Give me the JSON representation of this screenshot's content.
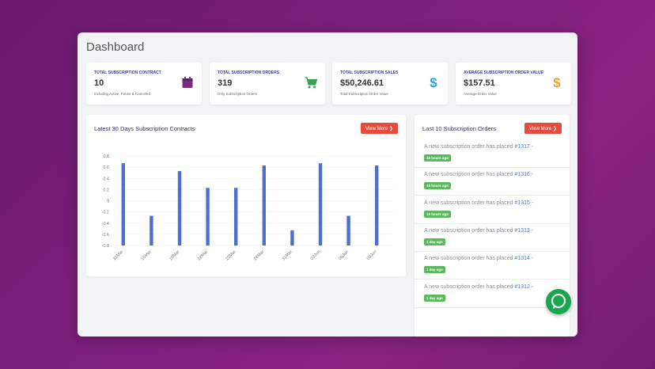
{
  "page": {
    "title": "Dashboard"
  },
  "cards": [
    {
      "label": "TOTAL SUBSCRIPTION CONTRACT",
      "value": "10",
      "sub": "Including Active, Pause & Canceled",
      "icon": "calendar-icon",
      "icon_color": "#7b2b80"
    },
    {
      "label": "TOTAL SUBSCRIPTION ORDERS",
      "value": "319",
      "sub": "Only Subscription Orders",
      "icon": "cart-icon",
      "icon_color": "#3aa05a"
    },
    {
      "label": "TOTAL SUBSCRIPTION SALES",
      "value": "$50,246.61",
      "sub": "Total Subscription Order Value",
      "icon": "dollar-icon",
      "icon_color": "#2aa3d6"
    },
    {
      "label": "AVERAGE SUBSCRIPTION ORDER VALUE",
      "value": "$157.51",
      "sub": "Average Order Value",
      "icon": "dollar-icon",
      "icon_color": "#f0a030"
    }
  ],
  "chart_panel": {
    "title": "Latest 30 Days Subscription Contracts",
    "button": "View More"
  },
  "orders_panel": {
    "title": "Last 10 Subscription Orders",
    "button": "View More",
    "items": [
      {
        "text": "A new subscription order has placed ",
        "link": "#1317",
        "suffix": " -",
        "badge": "15 hours ago"
      },
      {
        "text": "A new subscription order has placed ",
        "link": "#1316",
        "suffix": " -",
        "badge": "15 hours ago"
      },
      {
        "text": "A new subscription order has placed ",
        "link": "#1315",
        "suffix": " -",
        "badge": "15 hours ago"
      },
      {
        "text": "A new subscription order has placed ",
        "link": "#1313",
        "suffix": " -",
        "badge": "1 day ago"
      },
      {
        "text": "A new subscription order has placed ",
        "link": "#1314",
        "suffix": " -",
        "badge": "1 day ago"
      },
      {
        "text": "A new subscription order has placed ",
        "link": "#1312",
        "suffix": " -",
        "badge": "1 day ago"
      }
    ]
  },
  "chart_data": {
    "type": "bar",
    "categories": [
      "11Mar",
      "16Mar",
      "19Mar",
      "22Mar",
      "25Mar",
      "28Mar",
      "31Mar",
      "03Jun",
      "06Jun",
      "09Jun"
    ],
    "values": [
      0.67,
      -0.27,
      0.53,
      0.23,
      0.23,
      0.63,
      -0.53,
      0.67,
      -0.27,
      0.63
    ],
    "yticks": [
      "0.8",
      "0.6",
      "0.4",
      "0.2",
      "0",
      "-0.2",
      "-0.4",
      "-0.6",
      "-0.8"
    ],
    "ylim": [
      -0.8,
      0.8
    ],
    "title": "",
    "xlabel": "",
    "ylabel": "",
    "bar_color": "#4f6fcf",
    "grid": true
  },
  "chat": {
    "icon": "chat-bubble-icon",
    "color": "#1aa550"
  }
}
